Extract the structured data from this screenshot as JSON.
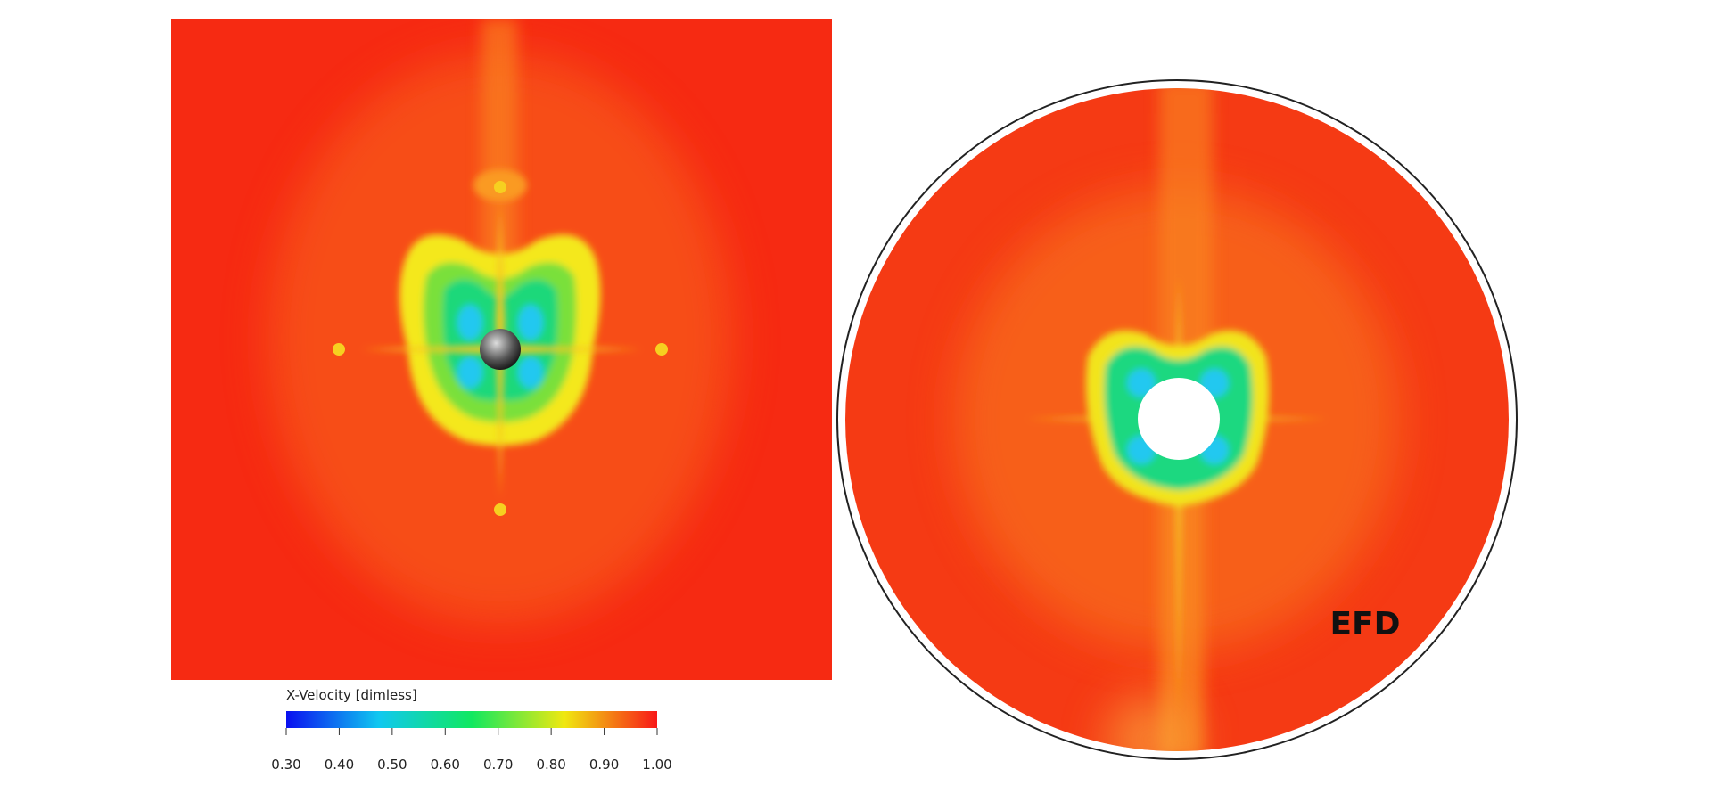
{
  "colorbar": {
    "title": "X-Velocity [dimless]",
    "lim": [
      0.3,
      1.0
    ],
    "ticks": [
      {
        "value": 0.3,
        "label": "0.30"
      },
      {
        "value": 0.4,
        "label": "0.40"
      },
      {
        "value": 0.5,
        "label": "0.50"
      },
      {
        "value": 0.6,
        "label": "0.60"
      },
      {
        "value": 0.7,
        "label": "0.70"
      },
      {
        "value": 0.8,
        "label": "0.80"
      },
      {
        "value": 0.9,
        "label": "0.90"
      },
      {
        "value": 1.0,
        "label": "1.00"
      }
    ],
    "colors": [
      "#0a10f0",
      "#10c8f0",
      "#10e860",
      "#f0e810",
      "#f81818"
    ]
  },
  "experiment_label": "EFD"
}
